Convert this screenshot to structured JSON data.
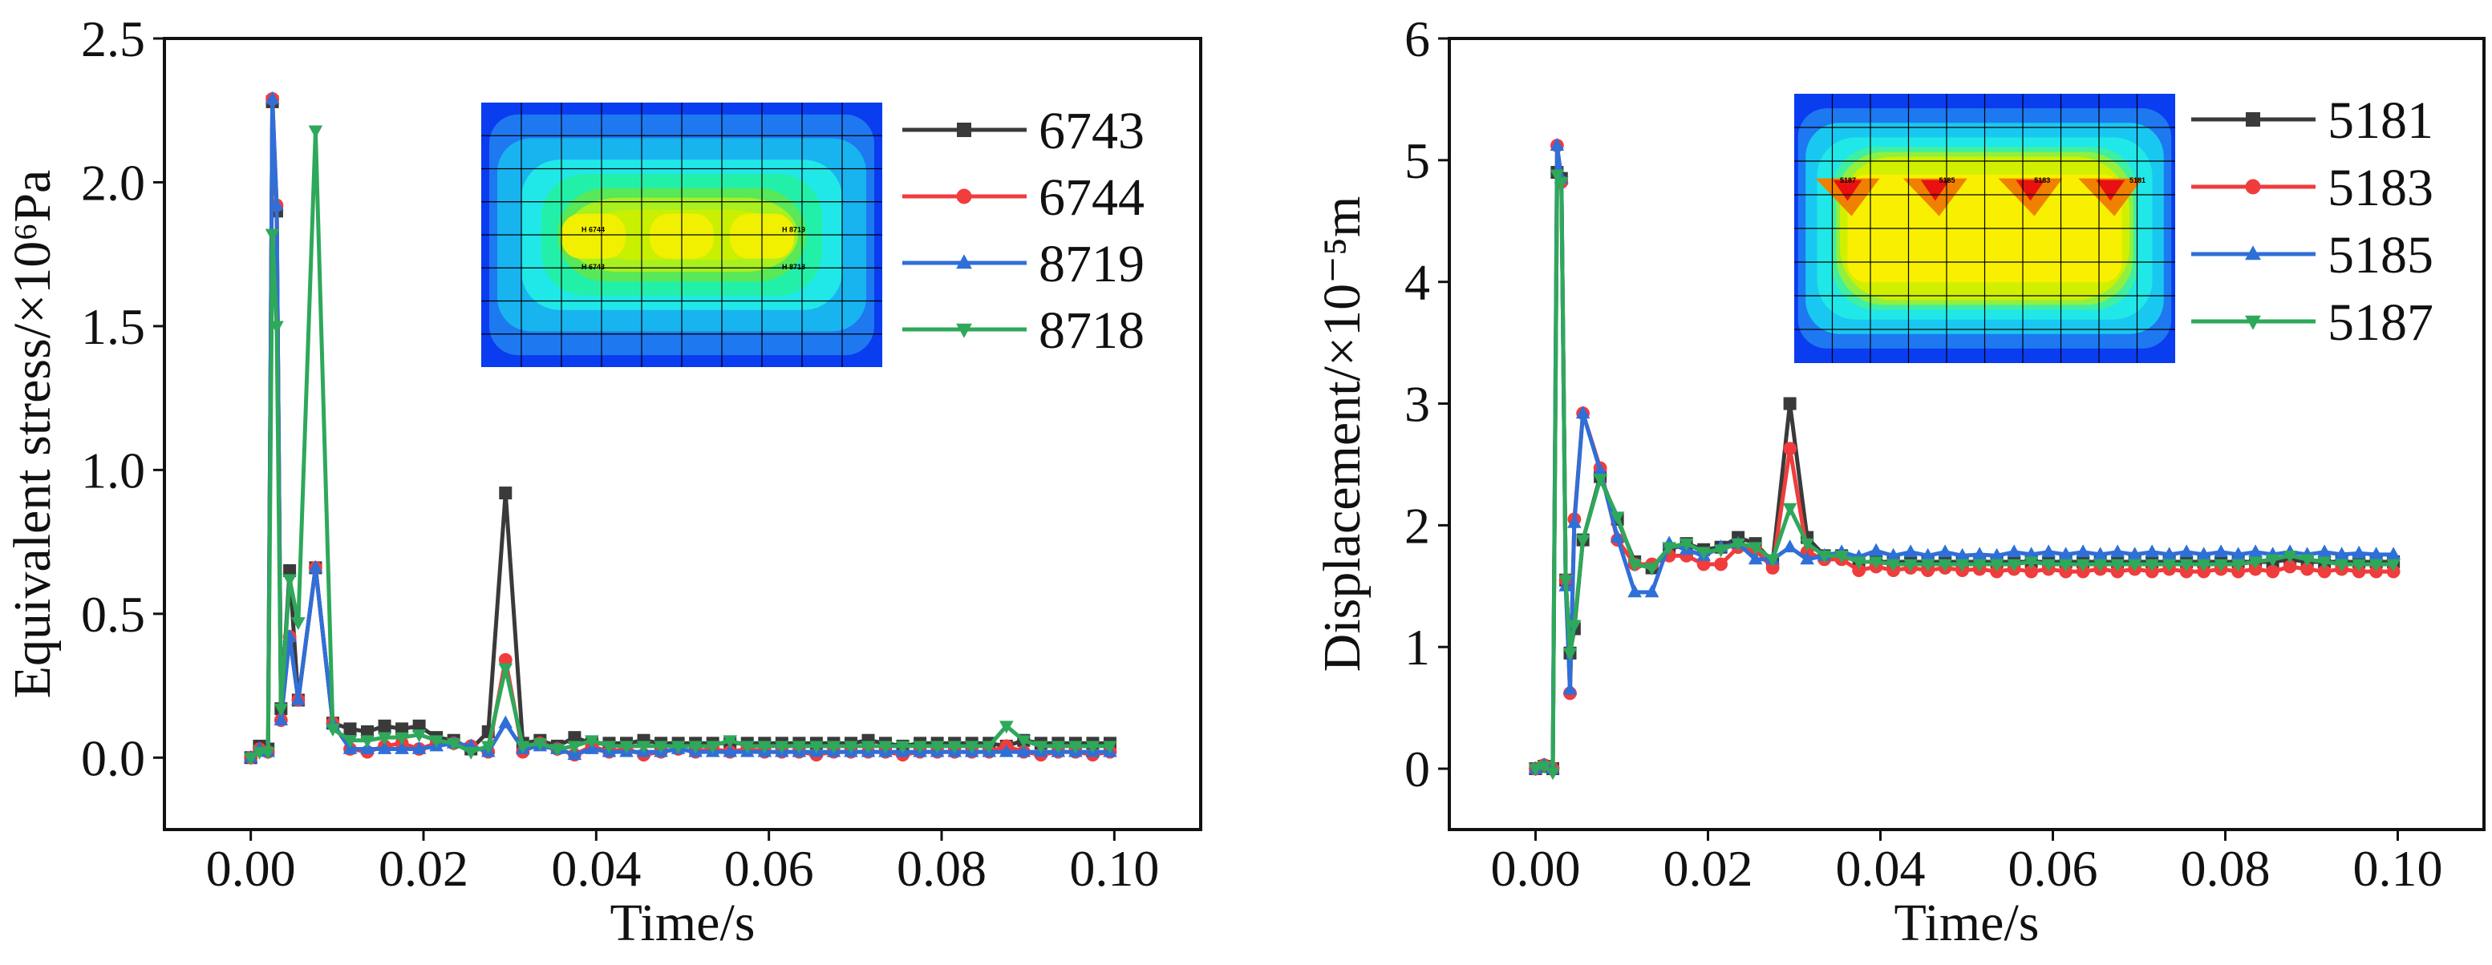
{
  "chart_data": [
    {
      "type": "line",
      "xlabel": "Time/s",
      "ylabel": "Equivalent stress/×10⁶Pa",
      "xlim": [
        -0.01,
        0.11
      ],
      "ylim": [
        -0.25,
        2.5
      ],
      "xticks": [
        0.0,
        0.02,
        0.04,
        0.06,
        0.08,
        0.1
      ],
      "xtick_labels": [
        "0.00",
        "0.02",
        "0.04",
        "0.06",
        "0.08",
        "0.10"
      ],
      "yticks": [
        0.0,
        0.5,
        1.0,
        1.5,
        2.0,
        2.5
      ],
      "ytick_labels": [
        "0.0",
        "0.5",
        "1.0",
        "1.5",
        "2.0",
        "2.5"
      ],
      "legend_position": "top-right",
      "inset": {
        "type": "stress-contour",
        "node_labels": [
          "H 6744",
          "H 8719",
          "H 6743",
          "H 8718"
        ]
      },
      "x": [
        0,
        0.001,
        0.002,
        0.0025,
        0.003,
        0.0035,
        0.0045,
        0.0055,
        0.0075,
        0.0095,
        0.0115,
        0.0135,
        0.0155,
        0.0175,
        0.0195,
        0.0215,
        0.0235,
        0.0255,
        0.0275,
        0.0295,
        0.0315,
        0.0335,
        0.0355,
        0.0375,
        0.0395,
        0.0415,
        0.0435,
        0.0455,
        0.0475,
        0.0495,
        0.0515,
        0.0535,
        0.0555,
        0.0575,
        0.0595,
        0.0615,
        0.0635,
        0.0655,
        0.0675,
        0.0695,
        0.0715,
        0.0735,
        0.0755,
        0.0775,
        0.0795,
        0.0815,
        0.0835,
        0.0855,
        0.0875,
        0.0895,
        0.0915,
        0.0935,
        0.0955,
        0.0975,
        0.0995
      ],
      "series": [
        {
          "name": "6743",
          "color": "#3a3a3a",
          "marker": "square",
          "values": [
            0,
            0.04,
            0.03,
            2.28,
            1.9,
            0.17,
            0.65,
            0.2,
            0.66,
            0.12,
            0.1,
            0.09,
            0.11,
            0.1,
            0.11,
            0.07,
            0.06,
            0.03,
            0.09,
            0.92,
            0.05,
            0.06,
            0.04,
            0.07,
            0.05,
            0.05,
            0.05,
            0.06,
            0.05,
            0.05,
            0.05,
            0.05,
            0.05,
            0.05,
            0.05,
            0.05,
            0.05,
            0.05,
            0.05,
            0.05,
            0.06,
            0.05,
            0.04,
            0.05,
            0.05,
            0.05,
            0.05,
            0.05,
            0.04,
            0.06,
            0.05,
            0.05,
            0.05,
            0.05,
            0.05
          ]
        },
        {
          "name": "6744",
          "color": "#f03c3c",
          "marker": "circle",
          "values": [
            0,
            0.03,
            0.02,
            2.29,
            1.92,
            0.13,
            0.42,
            0.2,
            0.66,
            0.12,
            0.03,
            0.02,
            0.04,
            0.05,
            0.03,
            0.05,
            0.05,
            0.04,
            0.02,
            0.34,
            0.02,
            0.05,
            0.03,
            0.01,
            0.04,
            0.02,
            0.03,
            0.01,
            0.02,
            0.03,
            0.02,
            0.03,
            0.02,
            0.03,
            0.02,
            0.02,
            0.02,
            0.01,
            0.02,
            0.02,
            0.02,
            0.02,
            0.01,
            0.02,
            0.02,
            0.02,
            0.02,
            0.02,
            0.04,
            0.02,
            0.01,
            0.02,
            0.02,
            0.01,
            0.02
          ]
        },
        {
          "name": "8719",
          "color": "#2f6fd8",
          "marker": "triangle-up",
          "values": [
            0,
            0.03,
            0.02,
            2.29,
            1.92,
            0.13,
            0.42,
            0.2,
            0.66,
            0.12,
            0.03,
            0.03,
            0.03,
            0.03,
            0.03,
            0.04,
            0.05,
            0.04,
            0.02,
            0.12,
            0.03,
            0.04,
            0.03,
            0.01,
            0.03,
            0.02,
            0.02,
            0.02,
            0.02,
            0.03,
            0.02,
            0.02,
            0.02,
            0.02,
            0.02,
            0.02,
            0.02,
            0.02,
            0.02,
            0.02,
            0.02,
            0.02,
            0.02,
            0.02,
            0.02,
            0.02,
            0.02,
            0.02,
            0.02,
            0.02,
            0.02,
            0.02,
            0.02,
            0.02,
            0.02
          ]
        },
        {
          "name": "8718",
          "color": "#2ea85a",
          "marker": "triangle-down",
          "values": [
            0,
            0.02,
            0.02,
            1.82,
            1.5,
            0.17,
            0.62,
            0.47,
            2.18,
            0.1,
            0.06,
            0.06,
            0.07,
            0.07,
            0.08,
            0.06,
            0.05,
            0.02,
            0.04,
            0.31,
            0.04,
            0.05,
            0.03,
            0.04,
            0.06,
            0.04,
            0.04,
            0.04,
            0.04,
            0.04,
            0.04,
            0.04,
            0.06,
            0.04,
            0.04,
            0.04,
            0.04,
            0.04,
            0.04,
            0.04,
            0.04,
            0.04,
            0.04,
            0.04,
            0.04,
            0.04,
            0.04,
            0.04,
            0.11,
            0.06,
            0.04,
            0.04,
            0.04,
            0.04,
            0.04
          ]
        }
      ]
    },
    {
      "type": "line",
      "xlabel": "Time/s",
      "ylabel": "Displacement/×10⁻⁵m",
      "xlim": [
        -0.01,
        0.11
      ],
      "ylim": [
        -0.5,
        6
      ],
      "xticks": [
        0.0,
        0.02,
        0.04,
        0.06,
        0.08,
        0.1
      ],
      "xtick_labels": [
        "0.00",
        "0.02",
        "0.04",
        "0.06",
        "0.08",
        "0.10"
      ],
      "yticks": [
        0,
        1,
        2,
        3,
        4,
        5,
        6
      ],
      "ytick_labels": [
        "0",
        "1",
        "2",
        "3",
        "4",
        "5",
        "6"
      ],
      "legend_position": "top-right",
      "inset": {
        "type": "displacement-contour",
        "node_labels": [
          "5187",
          "5185",
          "5183",
          "5181"
        ]
      },
      "x": [
        0,
        0.001,
        0.002,
        0.0025,
        0.003,
        0.0035,
        0.004,
        0.0045,
        0.0055,
        0.0075,
        0.0095,
        0.0115,
        0.0135,
        0.0155,
        0.0175,
        0.0195,
        0.0215,
        0.0235,
        0.0255,
        0.0275,
        0.0295,
        0.0315,
        0.0335,
        0.0355,
        0.0375,
        0.0395,
        0.0415,
        0.0435,
        0.0455,
        0.0475,
        0.0495,
        0.0515,
        0.0535,
        0.0555,
        0.0575,
        0.0595,
        0.0615,
        0.0635,
        0.0655,
        0.0675,
        0.0695,
        0.0715,
        0.0735,
        0.0755,
        0.0775,
        0.0795,
        0.0815,
        0.0835,
        0.0855,
        0.0875,
        0.0895,
        0.0915,
        0.0935,
        0.0955,
        0.0975,
        0.0995
      ],
      "series": [
        {
          "name": "5181",
          "color": "#3a3a3a",
          "marker": "square",
          "values": [
            0,
            0.02,
            0,
            4.9,
            4.85,
            1.55,
            0.95,
            1.15,
            1.88,
            2.4,
            2.05,
            1.7,
            1.65,
            1.8,
            1.85,
            1.8,
            1.82,
            1.9,
            1.85,
            1.7,
            3.0,
            1.9,
            1.75,
            1.75,
            1.7,
            1.7,
            1.7,
            1.7,
            1.7,
            1.7,
            1.7,
            1.7,
            1.7,
            1.7,
            1.7,
            1.7,
            1.7,
            1.7,
            1.7,
            1.7,
            1.7,
            1.7,
            1.7,
            1.7,
            1.7,
            1.7,
            1.7,
            1.7,
            1.7,
            1.72,
            1.7,
            1.7,
            1.7,
            1.7,
            1.7,
            1.7
          ]
        },
        {
          "name": "5183",
          "color": "#f03c3c",
          "marker": "circle",
          "values": [
            0,
            0.03,
            0,
            5.12,
            4.82,
            1.55,
            0.62,
            2.05,
            2.92,
            2.47,
            1.88,
            1.68,
            1.68,
            1.75,
            1.75,
            1.68,
            1.68,
            1.82,
            1.8,
            1.65,
            2.63,
            1.78,
            1.72,
            1.72,
            1.63,
            1.66,
            1.63,
            1.65,
            1.63,
            1.65,
            1.63,
            1.64,
            1.62,
            1.64,
            1.62,
            1.64,
            1.62,
            1.62,
            1.64,
            1.62,
            1.64,
            1.62,
            1.64,
            1.62,
            1.62,
            1.64,
            1.62,
            1.64,
            1.62,
            1.66,
            1.64,
            1.62,
            1.64,
            1.62,
            1.62,
            1.62
          ]
        },
        {
          "name": "5185",
          "color": "#2f6fd8",
          "marker": "triangle-up",
          "values": [
            0,
            0.03,
            0,
            5.12,
            4.85,
            1.5,
            0.65,
            2.02,
            2.92,
            2.45,
            1.9,
            1.45,
            1.45,
            1.85,
            1.8,
            1.75,
            1.82,
            1.85,
            1.72,
            1.72,
            1.82,
            1.72,
            1.75,
            1.78,
            1.74,
            1.79,
            1.75,
            1.78,
            1.75,
            1.78,
            1.75,
            1.76,
            1.75,
            1.78,
            1.76,
            1.78,
            1.76,
            1.78,
            1.76,
            1.78,
            1.76,
            1.78,
            1.76,
            1.78,
            1.76,
            1.78,
            1.76,
            1.78,
            1.76,
            1.78,
            1.76,
            1.78,
            1.76,
            1.77,
            1.76,
            1.76
          ]
        },
        {
          "name": "5187",
          "color": "#2ea85a",
          "marker": "triangle-down",
          "values": [
            0,
            0.02,
            -0.03,
            4.88,
            4.82,
            1.55,
            0.95,
            1.18,
            1.88,
            2.38,
            2.07,
            1.68,
            1.65,
            1.82,
            1.85,
            1.78,
            1.8,
            1.85,
            1.82,
            1.72,
            2.14,
            1.85,
            1.75,
            1.75,
            1.7,
            1.7,
            1.68,
            1.68,
            1.68,
            1.68,
            1.68,
            1.68,
            1.68,
            1.68,
            1.7,
            1.68,
            1.68,
            1.68,
            1.68,
            1.68,
            1.68,
            1.68,
            1.68,
            1.68,
            1.68,
            1.68,
            1.68,
            1.7,
            1.72,
            1.75,
            1.72,
            1.7,
            1.68,
            1.68,
            1.68,
            1.68
          ]
        }
      ]
    }
  ]
}
